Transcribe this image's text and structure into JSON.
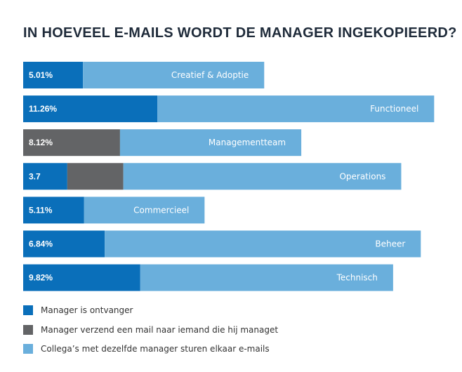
{
  "title": "IN HOEVEEL E-MAILS WORDT DE MANAGER INGEKOPIEERD?",
  "colors": {
    "ontvanger": "#0a6fba",
    "managet": "#636466",
    "collegas": "#6aafdc",
    "title": "#1f2b3a"
  },
  "legend": [
    {
      "label": "Manager is ontvanger",
      "color": "#0a6fba"
    },
    {
      "label": "Manager verzend een mail naar iemand die hij managet",
      "color": "#636466"
    },
    {
      "label": "Collega’s met dezelfde manager sturen elkaar e-mails",
      "color": "#6aafdc"
    }
  ],
  "chart_data": {
    "type": "bar",
    "orientation": "horizontal",
    "stacked": true,
    "title": "IN HOEVEEL E-MAILS WORDT DE MANAGER INGEKOPIEERD?",
    "categories": [
      "Creatief & Adoptie",
      "Functioneel",
      "Managementteam",
      "Operations",
      "Commercieel",
      "Beheer",
      "Technisch"
    ],
    "value_labels": [
      "5.01%",
      "11.26%",
      "8.12%",
      "3.7",
      "5.11%",
      "6.84%",
      "9.82%"
    ],
    "series": [
      {
        "name": "Manager is ontvanger",
        "values": [
          5.01,
          11.26,
          0,
          3.7,
          5.11,
          6.84,
          9.82
        ],
        "color": "#0a6fba"
      },
      {
        "name": "Manager verzend een mail naar iemand die hij managet",
        "values": [
          0,
          0,
          8.12,
          4.7,
          0,
          0,
          0
        ],
        "color": "#636466"
      },
      {
        "name": "Collega’s met dezelfde manager sturen elkaar e-mails",
        "values": [
          15.2,
          23.2,
          15.2,
          23.3,
          10.1,
          26.5,
          21.2
        ],
        "color": "#6aafdc"
      }
    ],
    "xlim": [
      0,
      34.5
    ],
    "grid": false,
    "legend_position": "bottom-left"
  }
}
